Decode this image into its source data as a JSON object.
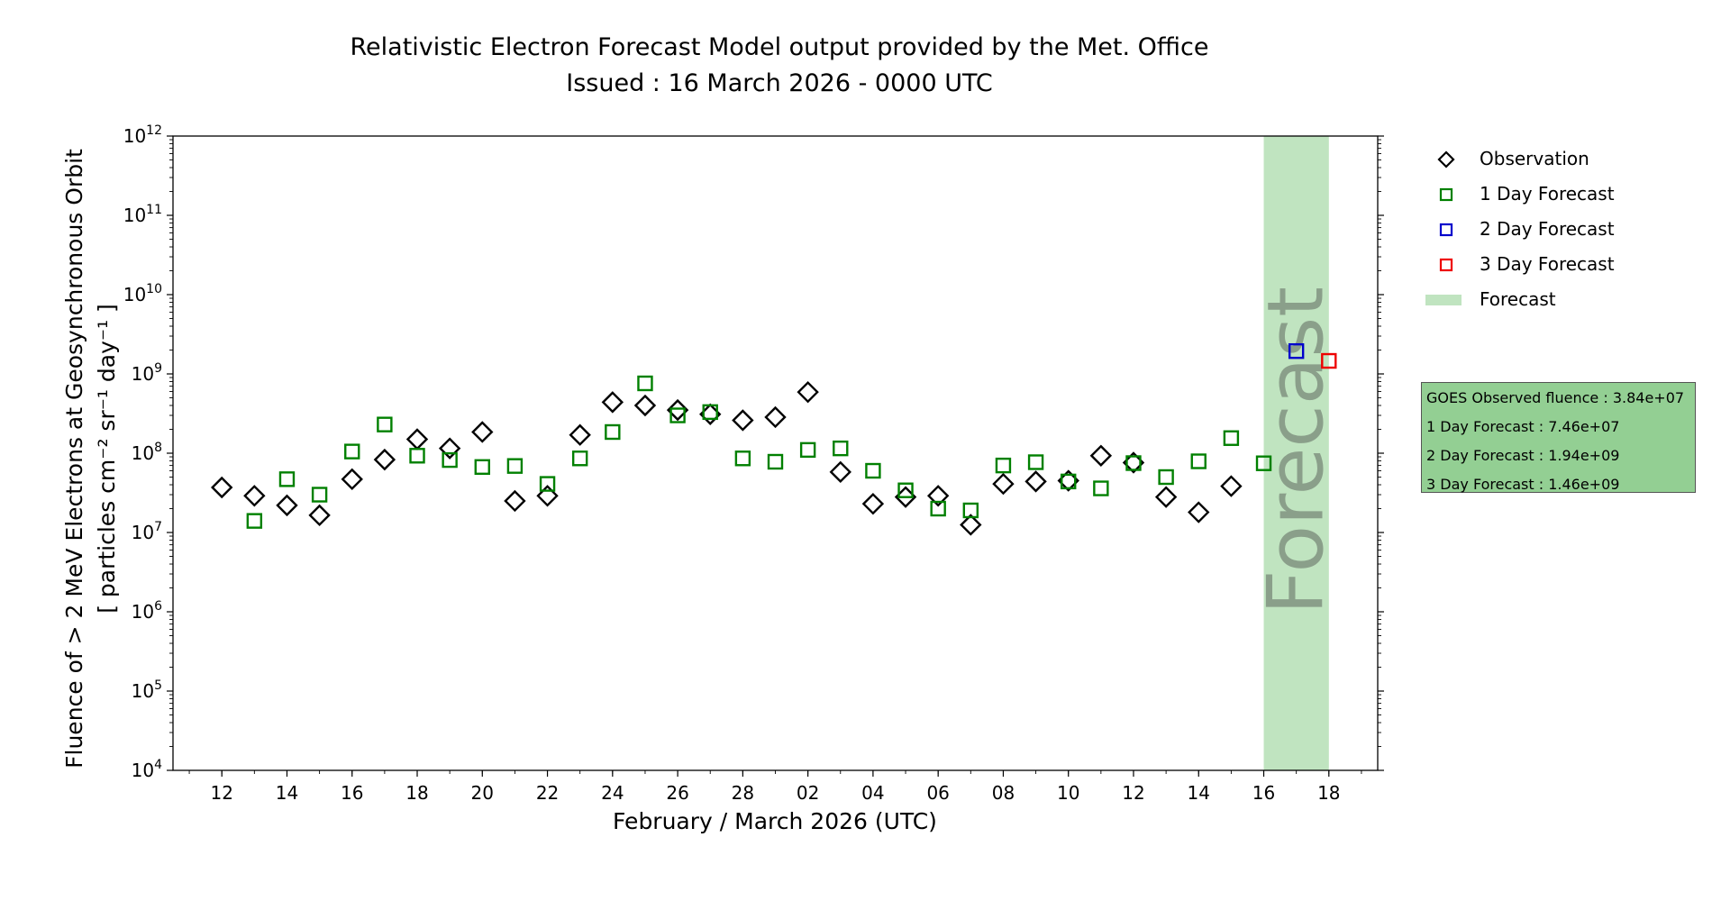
{
  "chart_data": {
    "type": "scatter",
    "title": "Relativistic Electron Forecast Model output provided by the Met. Office",
    "subtitle": "Issued : 16 March 2026 - 0000 UTC",
    "xlabel": "February / March 2026 (UTC)",
    "ylabel_line1": "Fluence of > 2 MeV Electrons at Geosynchronous Orbit",
    "ylabel_line2": "[ particles cm⁻² sr⁻¹ day⁻¹ ]",
    "y_scale": "log",
    "ylim": [
      10000,
      1000000000000
    ],
    "y_tick_labels": [
      {
        "base": "10",
        "exp": "4",
        "value": 10000
      },
      {
        "base": "10",
        "exp": "5",
        "value": 100000
      },
      {
        "base": "10",
        "exp": "6",
        "value": 1000000
      },
      {
        "base": "10",
        "exp": "7",
        "value": 10000000
      },
      {
        "base": "10",
        "exp": "8",
        "value": 100000000
      },
      {
        "base": "10",
        "exp": "9",
        "value": 1000000000
      },
      {
        "base": "10",
        "exp": "10",
        "value": 10000000000
      },
      {
        "base": "10",
        "exp": "11",
        "value": 100000000000
      },
      {
        "base": "10",
        "exp": "12",
        "value": 1000000000000
      }
    ],
    "xlim": [
      "2026-02-10T12:00",
      "2026-03-19T12:00"
    ],
    "x_ticks": [
      {
        "date": "2026-02-12",
        "label": "12"
      },
      {
        "date": "2026-02-14",
        "label": "14"
      },
      {
        "date": "2026-02-16",
        "label": "16"
      },
      {
        "date": "2026-02-18",
        "label": "18"
      },
      {
        "date": "2026-02-20",
        "label": "20"
      },
      {
        "date": "2026-02-22",
        "label": "22"
      },
      {
        "date": "2026-02-24",
        "label": "24"
      },
      {
        "date": "2026-02-26",
        "label": "26"
      },
      {
        "date": "2026-02-28",
        "label": "28"
      },
      {
        "date": "2026-03-02",
        "label": "02"
      },
      {
        "date": "2026-03-04",
        "label": "04"
      },
      {
        "date": "2026-03-06",
        "label": "06"
      },
      {
        "date": "2026-03-08",
        "label": "08"
      },
      {
        "date": "2026-03-10",
        "label": "10"
      },
      {
        "date": "2026-03-12",
        "label": "12"
      },
      {
        "date": "2026-03-14",
        "label": "14"
      },
      {
        "date": "2026-03-16",
        "label": "16"
      },
      {
        "date": "2026-03-18",
        "label": "18"
      }
    ],
    "forecast_region": {
      "start": "2026-03-16",
      "end": "2026-03-18",
      "label": "Forecast",
      "color": "#c0e4c0",
      "text_color": "#8a9f8a"
    },
    "series": [
      {
        "name": "Observation",
        "marker": "diamond",
        "color": "#000000",
        "points": [
          {
            "x": "2026-02-12",
            "y": 37000000.0
          },
          {
            "x": "2026-02-13",
            "y": 29000000.0
          },
          {
            "x": "2026-02-14",
            "y": 22000000.0
          },
          {
            "x": "2026-02-15",
            "y": 16500000.0
          },
          {
            "x": "2026-02-16",
            "y": 47000000.0
          },
          {
            "x": "2026-02-17",
            "y": 83000000.0
          },
          {
            "x": "2026-02-18",
            "y": 150000000.0
          },
          {
            "x": "2026-02-19",
            "y": 115000000.0
          },
          {
            "x": "2026-02-20",
            "y": 185000000.0
          },
          {
            "x": "2026-02-21",
            "y": 25000000.0
          },
          {
            "x": "2026-02-22",
            "y": 29000000.0
          },
          {
            "x": "2026-02-23",
            "y": 170000000.0
          },
          {
            "x": "2026-02-24",
            "y": 440000000.0
          },
          {
            "x": "2026-02-25",
            "y": 400000000.0
          },
          {
            "x": "2026-02-26",
            "y": 350000000.0
          },
          {
            "x": "2026-02-27",
            "y": 310000000.0
          },
          {
            "x": "2026-02-28",
            "y": 260000000.0
          },
          {
            "x": "2026-03-01",
            "y": 285000000.0
          },
          {
            "x": "2026-03-02",
            "y": 590000000.0
          },
          {
            "x": "2026-03-03",
            "y": 58000000.0
          },
          {
            "x": "2026-03-04",
            "y": 23000000.0
          },
          {
            "x": "2026-03-05",
            "y": 28000000.0
          },
          {
            "x": "2026-03-06",
            "y": 29000000.0
          },
          {
            "x": "2026-03-07",
            "y": 12500000.0
          },
          {
            "x": "2026-03-08",
            "y": 41000000.0
          },
          {
            "x": "2026-03-09",
            "y": 44000000.0
          },
          {
            "x": "2026-03-10",
            "y": 45000000.0
          },
          {
            "x": "2026-03-11",
            "y": 93000000.0
          },
          {
            "x": "2026-03-12",
            "y": 76000000.0
          },
          {
            "x": "2026-03-13",
            "y": 28000000.0
          },
          {
            "x": "2026-03-14",
            "y": 18000000.0
          },
          {
            "x": "2026-03-15",
            "y": 38400000.0
          }
        ]
      },
      {
        "name": "1 Day Forecast",
        "marker": "square",
        "color": "#008000",
        "points": [
          {
            "x": "2026-02-13",
            "y": 14000000.0
          },
          {
            "x": "2026-02-14",
            "y": 47000000.0
          },
          {
            "x": "2026-02-15",
            "y": 30000000.0
          },
          {
            "x": "2026-02-16",
            "y": 105000000.0
          },
          {
            "x": "2026-02-17",
            "y": 230000000.0
          },
          {
            "x": "2026-02-18",
            "y": 93000000.0
          },
          {
            "x": "2026-02-19",
            "y": 82000000.0
          },
          {
            "x": "2026-02-20",
            "y": 67000000.0
          },
          {
            "x": "2026-02-21",
            "y": 69000000.0
          },
          {
            "x": "2026-02-22",
            "y": 41000000.0
          },
          {
            "x": "2026-02-23",
            "y": 86000000.0
          },
          {
            "x": "2026-02-24",
            "y": 185000000.0
          },
          {
            "x": "2026-02-25",
            "y": 760000000.0
          },
          {
            "x": "2026-02-26",
            "y": 300000000.0
          },
          {
            "x": "2026-02-27",
            "y": 330000000.0
          },
          {
            "x": "2026-02-28",
            "y": 86000000.0
          },
          {
            "x": "2026-03-01",
            "y": 78000000.0
          },
          {
            "x": "2026-03-02",
            "y": 110000000.0
          },
          {
            "x": "2026-03-03",
            "y": 115000000.0
          },
          {
            "x": "2026-03-04",
            "y": 60000000.0
          },
          {
            "x": "2026-03-05",
            "y": 34000000.0
          },
          {
            "x": "2026-03-06",
            "y": 20000000.0
          },
          {
            "x": "2026-03-07",
            "y": 19000000.0
          },
          {
            "x": "2026-03-08",
            "y": 70000000.0
          },
          {
            "x": "2026-03-09",
            "y": 77000000.0
          },
          {
            "x": "2026-03-10",
            "y": 44000000.0
          },
          {
            "x": "2026-03-11",
            "y": 36000000.0
          },
          {
            "x": "2026-03-12",
            "y": 75000000.0
          },
          {
            "x": "2026-03-13",
            "y": 50000000.0
          },
          {
            "x": "2026-03-14",
            "y": 79000000.0
          },
          {
            "x": "2026-03-15",
            "y": 155000000.0
          },
          {
            "x": "2026-03-16",
            "y": 74600000.0
          }
        ]
      },
      {
        "name": "2 Day Forecast",
        "marker": "square",
        "color": "#0000cc",
        "points": [
          {
            "x": "2026-03-17",
            "y": 1940000000.0
          }
        ]
      },
      {
        "name": "3 Day Forecast",
        "marker": "square",
        "color": "#ee0000",
        "points": [
          {
            "x": "2026-03-18",
            "y": 1460000000.0
          }
        ]
      }
    ],
    "legend": {
      "placement": "right, outside plot",
      "entries": [
        {
          "label": "Observation",
          "marker": "diamond",
          "color": "#000000"
        },
        {
          "label": "1 Day Forecast",
          "marker": "square",
          "color": "#008000"
        },
        {
          "label": "2 Day Forecast",
          "marker": "square",
          "color": "#0000cc"
        },
        {
          "label": "3 Day Forecast",
          "marker": "square",
          "color": "#ee0000"
        },
        {
          "label": "Forecast",
          "marker": "patch",
          "color": "#c0e4c0"
        }
      ]
    },
    "info_box": {
      "color": "#93cf93",
      "lines": [
        "GOES Observed fluence : 3.84e+07",
        "1 Day Forecast : 7.46e+07",
        "2 Day Forecast : 1.94e+09",
        "3 Day Forecast : 1.46e+09"
      ]
    }
  }
}
